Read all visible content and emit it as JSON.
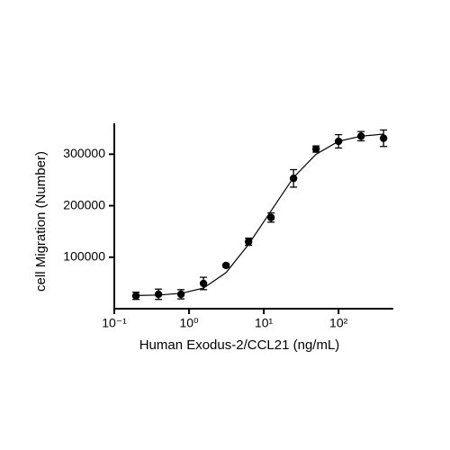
{
  "chart_data": {
    "type": "scatter",
    "xlabel": "Human Exodus-2/CCL21 (ng/mL)",
    "ylabel": "cell Migration (Number)",
    "xscale": "log",
    "x": [
      0.195,
      0.39,
      0.78,
      1.56,
      3.125,
      6.25,
      12.5,
      25,
      50,
      100,
      200,
      400
    ],
    "values": [
      25000,
      28000,
      28000,
      49000,
      84000,
      130000,
      177000,
      253000,
      310000,
      325000,
      335000,
      331000
    ],
    "errors": [
      7000,
      10000,
      9000,
      12000,
      3000,
      7000,
      9000,
      17000,
      6000,
      13000,
      9000,
      16000
    ],
    "color": "#000000",
    "fit": {
      "x": [
        0.19,
        0.4,
        0.8,
        1.56,
        3.125,
        6.25,
        12.5,
        25,
        50,
        100,
        200,
        400
      ],
      "values": [
        25500,
        26500,
        30000,
        40000,
        70000,
        125000,
        190000,
        255000,
        300000,
        325000,
        335000,
        339000
      ]
    },
    "xlim": [
      0.1,
      540
    ],
    "ylim": [
      0,
      360000
    ],
    "xticks": [
      {
        "value": 0.1,
        "label": "10⁻¹"
      },
      {
        "value": 1,
        "label": "10⁰"
      },
      {
        "value": 10,
        "label": "10¹"
      },
      {
        "value": 100,
        "label": "10²"
      }
    ],
    "yticks": [
      100000,
      200000,
      300000
    ]
  }
}
